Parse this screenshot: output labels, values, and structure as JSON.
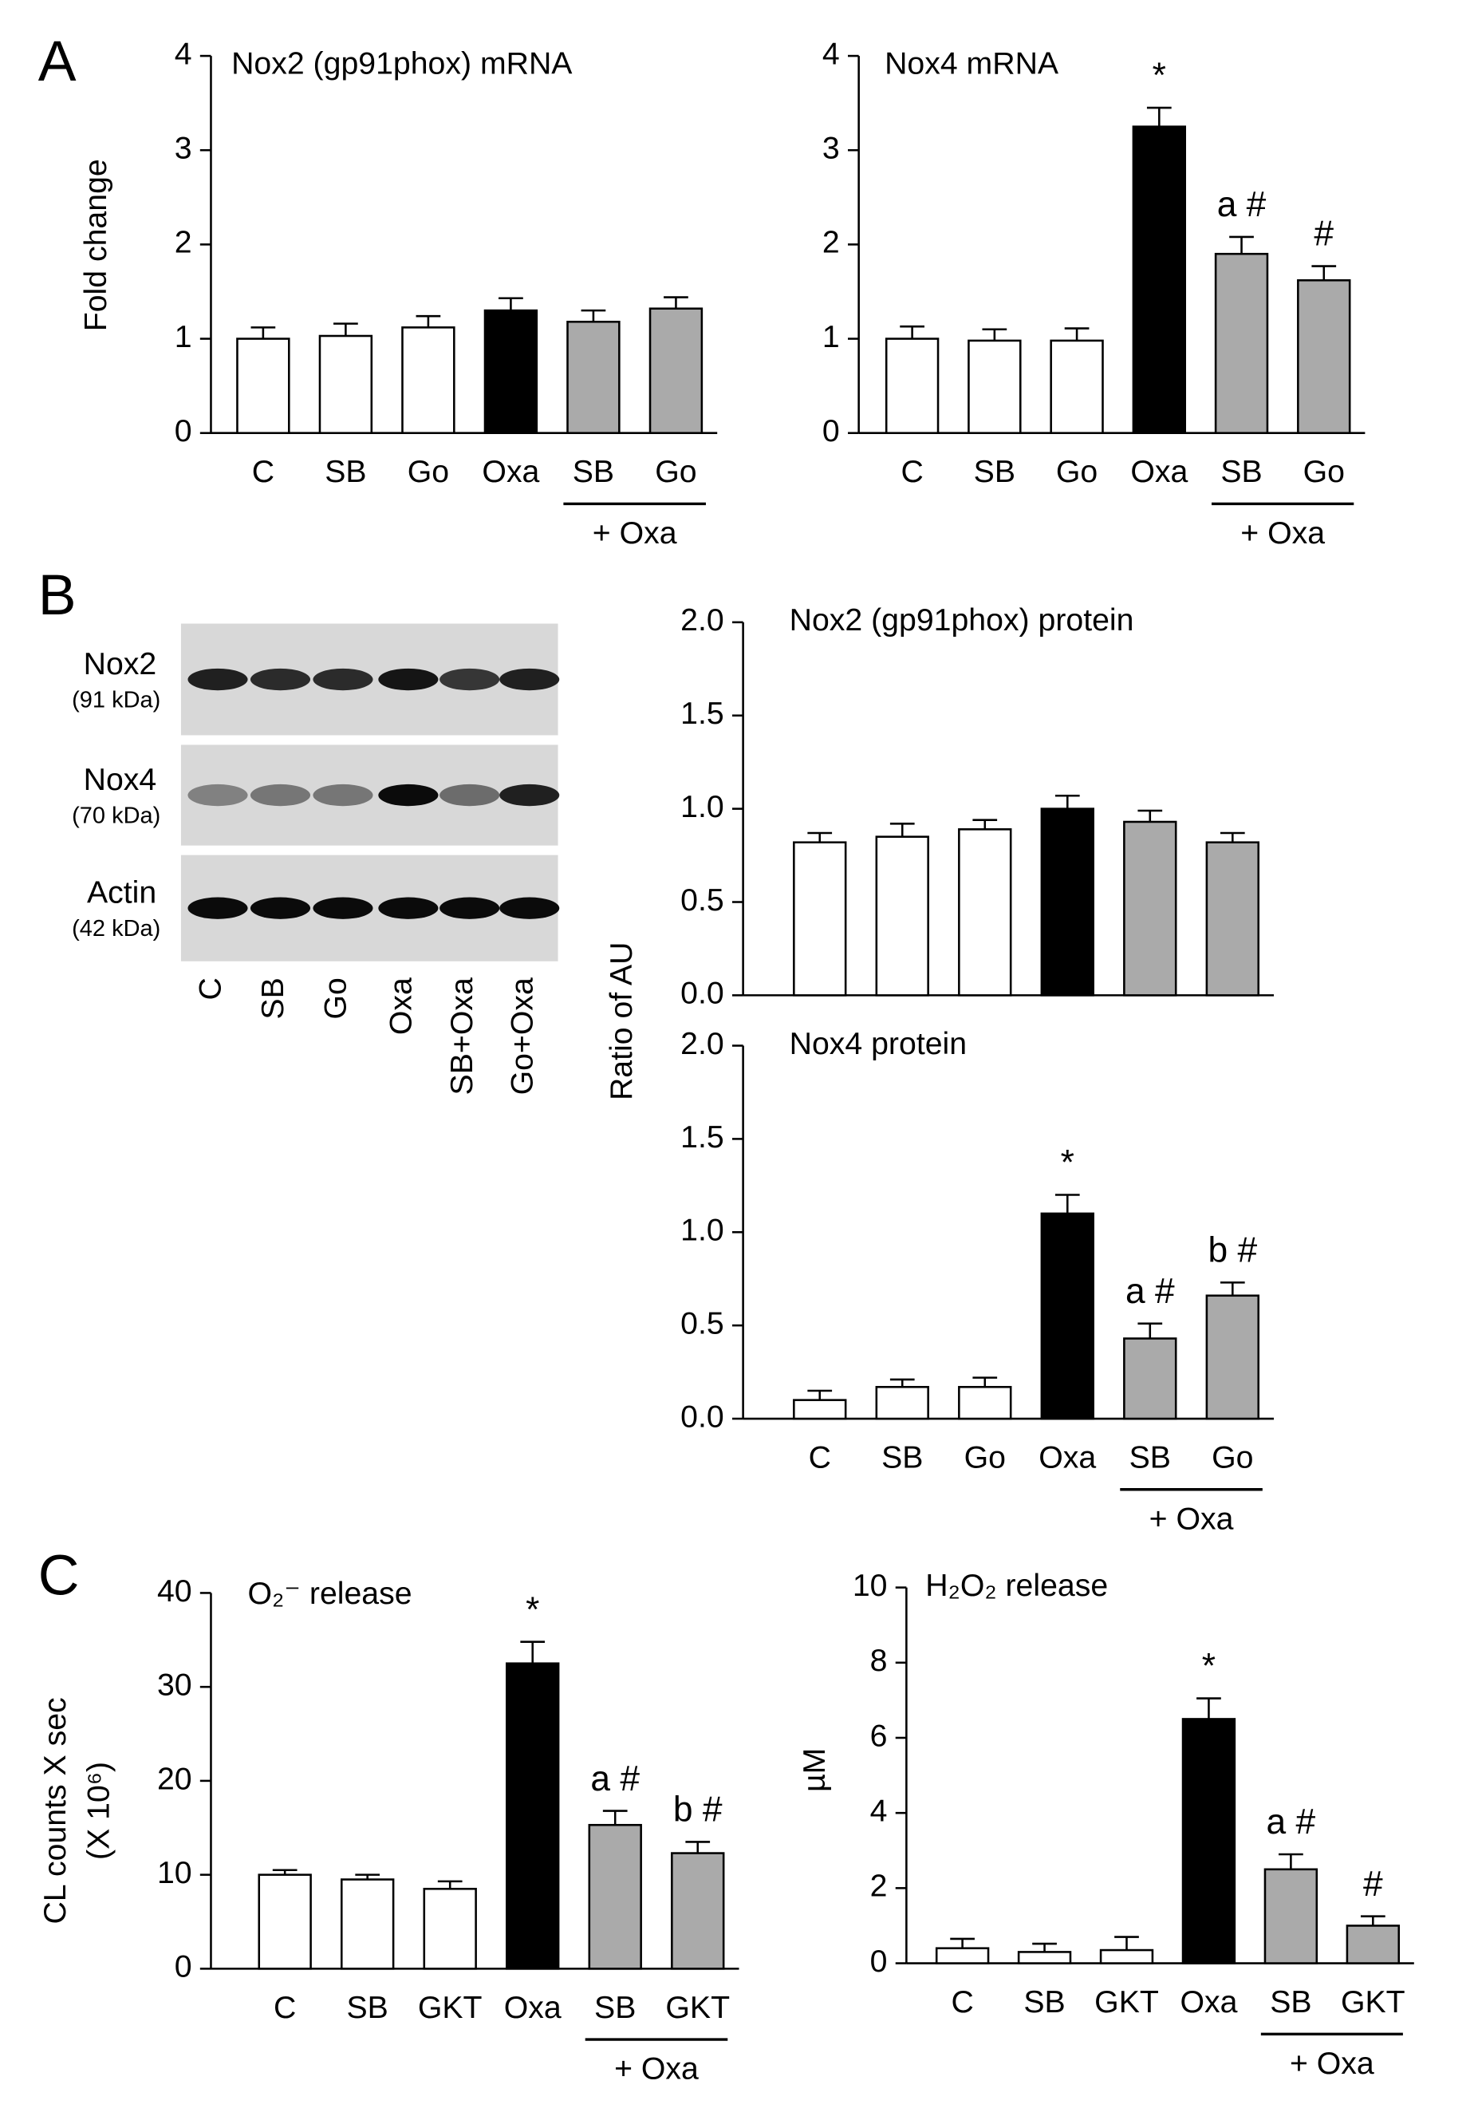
{
  "chart_data": [
    {
      "type": "bar",
      "panel_label": "A",
      "title": "Nox2 (gp91phox) mRNA",
      "ylabel": [
        "Fold change"
      ],
      "categories": [
        "C",
        "SB",
        "Go",
        "Oxa",
        "SB",
        "Go"
      ],
      "group_label": "+ Oxa",
      "values": [
        1.0,
        1.03,
        1.12,
        1.3,
        1.18,
        1.32
      ],
      "errors": [
        0.12,
        0.13,
        0.12,
        0.13,
        0.12,
        0.12
      ],
      "colors": [
        "#ffffff",
        "#ffffff",
        "#ffffff",
        "#000000",
        "#aaaaaa",
        "#aaaaaa"
      ],
      "ylim": [
        0,
        4
      ],
      "yticks": [
        0,
        1,
        2,
        3,
        4
      ]
    },
    {
      "type": "bar",
      "title": "Nox4 mRNA",
      "categories": [
        "C",
        "SB",
        "Go",
        "Oxa",
        "SB",
        "Go"
      ],
      "group_label": "+ Oxa",
      "values": [
        1.0,
        0.98,
        0.98,
        3.25,
        1.9,
        1.62
      ],
      "errors": [
        0.13,
        0.12,
        0.13,
        0.2,
        0.18,
        0.15
      ],
      "annotations": [
        null,
        null,
        null,
        "*",
        "a #",
        "#"
      ],
      "colors": [
        "#ffffff",
        "#ffffff",
        "#ffffff",
        "#000000",
        "#aaaaaa",
        "#aaaaaa"
      ],
      "ylim": [
        0,
        4
      ],
      "yticks": [
        0,
        1,
        2,
        3,
        4
      ]
    },
    {
      "type": "bar",
      "title": "Nox2 (gp91phox) protein",
      "values": [
        0.82,
        0.85,
        0.89,
        1.0,
        0.93,
        0.82
      ],
      "errors": [
        0.05,
        0.07,
        0.05,
        0.07,
        0.06,
        0.05
      ],
      "colors": [
        "#ffffff",
        "#ffffff",
        "#ffffff",
        "#000000",
        "#aaaaaa",
        "#aaaaaa"
      ],
      "ylim": [
        0,
        2
      ],
      "yticks": [
        {
          "value": 0,
          "label": "0.0"
        },
        {
          "value": 0.5,
          "label": "0.5"
        },
        {
          "value": 1,
          "label": "1.0"
        },
        {
          "value": 1.5,
          "label": "1.5"
        },
        {
          "value": 2,
          "label": "2.0"
        }
      ]
    },
    {
      "type": "bar",
      "title": "Nox4  protein",
      "ylabel": [
        "Ratio of AU"
      ],
      "categories": [
        "C",
        "SB",
        "Go",
        "Oxa",
        "SB",
        "Go"
      ],
      "group_label": "+ Oxa",
      "values": [
        0.1,
        0.17,
        0.17,
        1.1,
        0.43,
        0.66
      ],
      "errors": [
        0.05,
        0.04,
        0.05,
        0.1,
        0.08,
        0.07
      ],
      "annotations": [
        null,
        null,
        null,
        "*",
        "a #",
        "b #"
      ],
      "colors": [
        "#ffffff",
        "#ffffff",
        "#ffffff",
        "#000000",
        "#aaaaaa",
        "#aaaaaa"
      ],
      "ylim": [
        0,
        2
      ],
      "yticks": [
        {
          "value": 0,
          "label": "0.0"
        },
        {
          "value": 0.5,
          "label": "0.5"
        },
        {
          "value": 1,
          "label": "1.0"
        },
        {
          "value": 1.5,
          "label": "1.5"
        },
        {
          "value": 2,
          "label": "2.0"
        }
      ]
    },
    {
      "type": "bar",
      "panel_label": "C",
      "title": "O₂⁻ release",
      "ylabel": [
        "CL counts X sec",
        "(X 10⁶)"
      ],
      "categories": [
        "C",
        "SB",
        "GKT",
        "Oxa",
        "SB",
        "GKT"
      ],
      "group_label": "+ Oxa",
      "values": [
        10,
        9.5,
        8.5,
        32.5,
        15.3,
        12.3
      ],
      "errors": [
        0.5,
        0.5,
        0.8,
        2.3,
        1.5,
        1.2
      ],
      "annotations": [
        null,
        null,
        null,
        "*",
        "a #",
        "b #"
      ],
      "colors": [
        "#ffffff",
        "#ffffff",
        "#ffffff",
        "#000000",
        "#aaaaaa",
        "#aaaaaa"
      ],
      "ylim": [
        0,
        40
      ],
      "yticks": [
        0,
        10,
        20,
        30,
        40
      ]
    },
    {
      "type": "bar",
      "title": "H₂O₂ release",
      "ylabel": [
        "µM"
      ],
      "categories": [
        "C",
        "SB",
        "GKT",
        "Oxa",
        "SB",
        "GKT"
      ],
      "group_label": "+ Oxa",
      "values": [
        0.4,
        0.3,
        0.35,
        6.5,
        2.5,
        1.0
      ],
      "errors": [
        0.25,
        0.22,
        0.35,
        0.55,
        0.4,
        0.25
      ],
      "annotations": [
        null,
        null,
        null,
        "*",
        "a #",
        "#"
      ],
      "colors": [
        "#ffffff",
        "#ffffff",
        "#ffffff",
        "#000000",
        "#aaaaaa",
        "#aaaaaa"
      ],
      "ylim": [
        0,
        10
      ],
      "yticks": [
        0,
        2,
        4,
        6,
        8,
        10
      ]
    }
  ],
  "blot": {
    "panel_label": "B",
    "rows": [
      {
        "name": "Nox2",
        "size": "(91 kDa)"
      },
      {
        "name": "Nox4",
        "size": "(70 kDa)"
      },
      {
        "name": "Actin",
        "size": "(42 kDa)"
      }
    ],
    "lanes": [
      "C",
      "SB",
      "Go",
      "Oxa",
      "SB+Oxa",
      "Go+Oxa"
    ]
  }
}
